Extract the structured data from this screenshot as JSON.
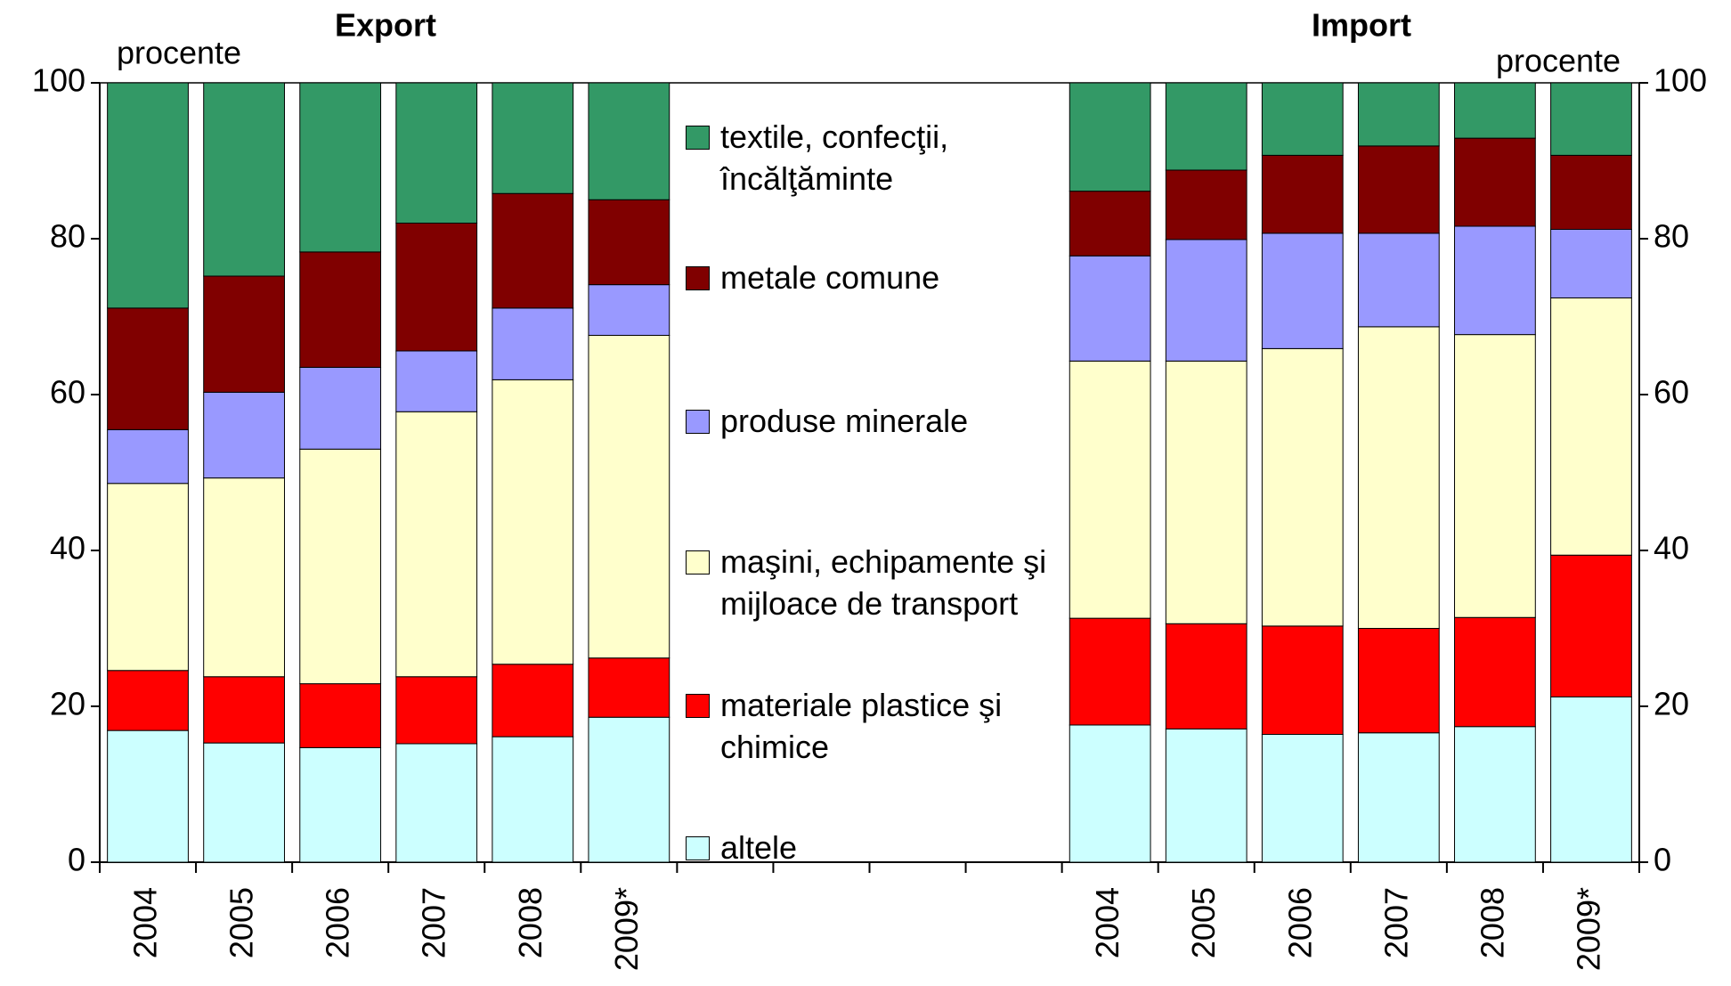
{
  "chart_data": {
    "type": "stacked_bar",
    "titles": [
      "Export",
      "Import"
    ],
    "ylabel": "procente",
    "y2label": "procente",
    "categories": [
      "2004",
      "2005",
      "2006",
      "2007",
      "2008",
      "2009*",
      null,
      null,
      null,
      null,
      "2004",
      "2005",
      "2006",
      "2007",
      "2008",
      "2009*"
    ],
    "series": [
      {
        "name": "altele",
        "color": "#ccffff",
        "values": [
          16.9,
          15.3,
          14.7,
          15.2,
          16.1,
          18.6,
          null,
          null,
          null,
          null,
          17.6,
          17.1,
          16.4,
          16.6,
          17.4,
          21.2
        ]
      },
      {
        "name": "materiale plastice şi chimice",
        "color": "#ff0000",
        "values": [
          7.7,
          8.5,
          8.2,
          8.6,
          9.3,
          7.6,
          null,
          null,
          null,
          null,
          13.7,
          13.5,
          13.9,
          13.4,
          14.0,
          18.2
        ]
      },
      {
        "name": "maşini, echipamente şi mijloace de transport",
        "color": "#ffffcc",
        "values": [
          24.0,
          25.5,
          30.1,
          34.0,
          36.5,
          41.4,
          null,
          null,
          null,
          null,
          33.0,
          33.7,
          35.6,
          38.7,
          36.3,
          33.0
        ]
      },
      {
        "name": "produse minerale",
        "color": "#9999ff",
        "values": [
          6.9,
          11.0,
          10.5,
          7.8,
          9.2,
          6.5,
          null,
          null,
          null,
          null,
          13.5,
          15.6,
          14.8,
          12.0,
          13.9,
          8.8
        ]
      },
      {
        "name": "metale comune",
        "color": "#800000",
        "values": [
          15.6,
          14.9,
          14.8,
          16.4,
          14.7,
          10.9,
          null,
          null,
          null,
          null,
          8.3,
          8.9,
          10.0,
          11.2,
          11.3,
          9.5
        ]
      },
      {
        "name": "textile, confecţii, încălţăminte",
        "color": "#339966",
        "values": [
          28.9,
          24.8,
          21.7,
          18.0,
          14.2,
          15.0,
          null,
          null,
          null,
          null,
          13.9,
          11.2,
          9.3,
          8.1,
          7.1,
          9.3
        ]
      }
    ],
    "ylim": [
      0,
      100
    ],
    "yticks": [
      0,
      20,
      40,
      60,
      80,
      100
    ],
    "y2lim": [
      0,
      100
    ],
    "y2ticks": [
      0,
      20,
      40,
      60,
      80,
      100
    ],
    "grid": false,
    "legend": "center"
  }
}
